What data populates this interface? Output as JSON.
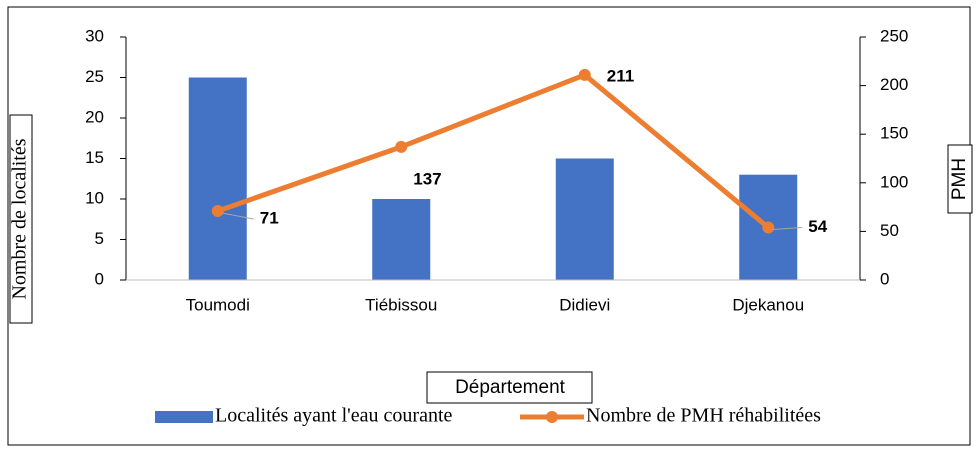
{
  "chart_data": {
    "type": "bar-line",
    "categories": [
      "Toumodi",
      "Tiébissou",
      "Didievi",
      "Djekanou"
    ],
    "x_label": "Département",
    "y_label": "Nombre de localités",
    "y2_label": "PMH",
    "series": [
      {
        "name": "Localités ayant l'eau courante",
        "type": "bar",
        "color": "#4472c4",
        "axis": "y",
        "values": [
          25,
          10,
          15,
          13
        ]
      },
      {
        "name": "Nombre de PMH réhabilitées",
        "type": "line",
        "color": "#ed7d31",
        "axis": "y2",
        "values": [
          71,
          137,
          211,
          54
        ]
      }
    ],
    "ylim": [
      0,
      30
    ],
    "yticks": [
      0,
      5,
      10,
      15,
      20,
      25,
      30
    ],
    "y2lim": [
      0,
      250
    ],
    "y2ticks": [
      0,
      50,
      100,
      150,
      200,
      250
    ],
    "grid": false,
    "legend": "bottom"
  }
}
